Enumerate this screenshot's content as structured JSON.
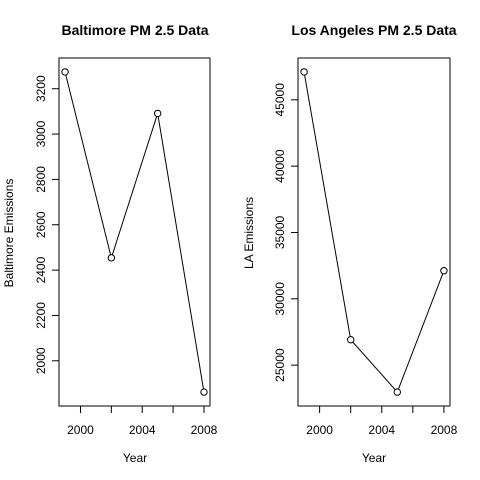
{
  "chart_data": [
    {
      "type": "line",
      "title": "Baltimore PM 2.5 Data",
      "xlabel": "Year",
      "ylabel": "Baltimore Emissions",
      "x": [
        1999,
        2002,
        2005,
        2008
      ],
      "y": [
        3274,
        2454,
        3091,
        1862
      ],
      "xlim": [
        1999,
        2008
      ],
      "ylim": [
        1862,
        3274
      ],
      "xticks": [
        2000,
        2002,
        2004,
        2006,
        2008
      ],
      "xtick_labels": [
        "2000",
        "",
        "2004",
        "",
        "2008"
      ],
      "yticks": [
        2000,
        2200,
        2400,
        2600,
        2800,
        3000,
        3200
      ],
      "ytick_labels": [
        "2000",
        "2200",
        "2400",
        "2600",
        "2800",
        "3000",
        "3200"
      ]
    },
    {
      "type": "line",
      "title": "Los Angeles PM 2.5 Data",
      "xlabel": "Year",
      "ylabel": "LA Emissions",
      "x": [
        1999,
        2002,
        2005,
        2008
      ],
      "y": [
        47103,
        26916,
        22969,
        32116
      ],
      "xlim": [
        1999,
        2008
      ],
      "ylim": [
        22969,
        47103
      ],
      "xticks": [
        2000,
        2002,
        2004,
        2006,
        2008
      ],
      "xtick_labels": [
        "2000",
        "",
        "2004",
        "",
        "2008"
      ],
      "yticks": [
        25000,
        30000,
        35000,
        40000,
        45000
      ],
      "ytick_labels": [
        "25000",
        "30000",
        "35000",
        "40000",
        "45000"
      ]
    }
  ]
}
